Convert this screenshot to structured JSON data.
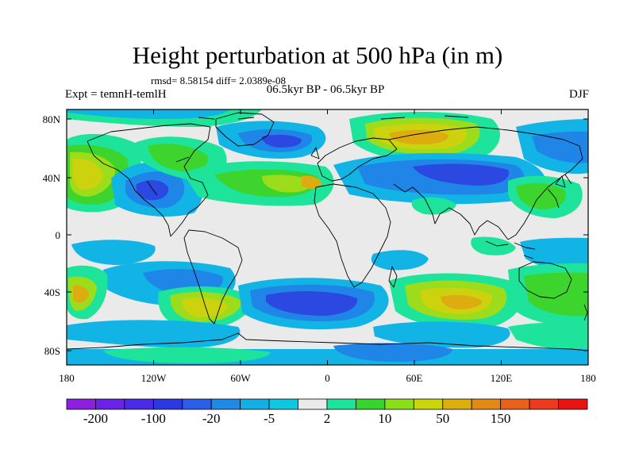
{
  "title": "Height perturbation at 500 hPa (in m)",
  "stats_line": "rmsd= 8.58154 diff= 2.0389e-08",
  "left_label": "Expt = temnH-temlH",
  "center_label": "06.5kyr BP - 06.5kyr BP",
  "right_label": "DJF",
  "y_ticks": [
    "80N",
    "40N",
    "0",
    "40S",
    "80S"
  ],
  "x_ticks": [
    "180",
    "120W",
    "60W",
    "0",
    "60E",
    "120E",
    "180"
  ],
  "colorbar": {
    "colors": [
      "#8c1fe0",
      "#6a22e6",
      "#4a2be6",
      "#2c39e0",
      "#2b5fe8",
      "#1f89e8",
      "#12aee6",
      "#0ec8e0",
      "#eaeaea",
      "#1ee39a",
      "#36d52e",
      "#8ade1a",
      "#c9d60c",
      "#dcae0e",
      "#e48a12",
      "#e8621a",
      "#ec3a1e",
      "#e81414"
    ],
    "labels": [
      "-200",
      "-100",
      "-20",
      "-5",
      "2",
      "10",
      "50",
      "150"
    ]
  },
  "colors": {
    "neutral": "#eaeaea",
    "blue_light": "#12b4e6",
    "blue_mid": "#1f86e8",
    "blue_deep": "#2b48e0",
    "green_cyan": "#1ee39a",
    "green": "#3ed42e",
    "lime": "#9cdc1a",
    "yellow_olive": "#cdd20e",
    "orange_ochre": "#dcac10"
  }
}
